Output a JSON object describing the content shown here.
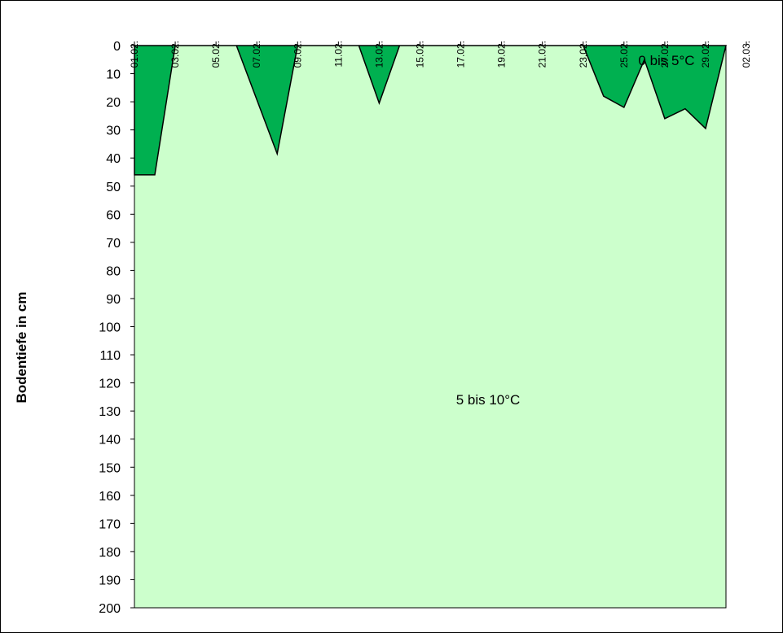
{
  "chart_data": {
    "type": "area",
    "title": "",
    "xlabel": "",
    "ylabel": "Bodentiefe in cm",
    "x_tick_labels": [
      "01.02.",
      "03.02.",
      "05.02.",
      "07.02.",
      "09.02.",
      "11.02.",
      "13.02.",
      "15.02.",
      "17.02.",
      "19.02.",
      "21.02.",
      "23.02.",
      "25.02.",
      "27.02.",
      "29.02.",
      "02.03."
    ],
    "x_range": [
      "01.02.",
      "02.03."
    ],
    "y_tick_labels": [
      "0",
      "10",
      "20",
      "30",
      "40",
      "50",
      "60",
      "70",
      "80",
      "90",
      "100",
      "110",
      "120",
      "130",
      "140",
      "150",
      "160",
      "170",
      "180",
      "190",
      "200"
    ],
    "ylim": [
      0,
      200
    ],
    "y_inverted": true,
    "grid": false,
    "colors": {
      "background_region": "#ccffcc",
      "cold_region": "#00b050",
      "outline": "#000000"
    },
    "series": [
      {
        "name": "0 bis 5°C",
        "points": [
          {
            "x": "01.02.",
            "y": 46
          },
          {
            "x": "02.02.",
            "y": 46
          },
          {
            "x": "03.02.",
            "y": 0
          },
          {
            "x": "06.02.",
            "y": 0
          },
          {
            "x": "08.02.",
            "y": 38.5
          },
          {
            "x": "09.02.",
            "y": 0
          },
          {
            "x": "12.02.",
            "y": 0
          },
          {
            "x": "13.02.",
            "y": 20.5
          },
          {
            "x": "14.02.",
            "y": 0
          },
          {
            "x": "23.02.",
            "y": 0
          },
          {
            "x": "24.02.",
            "y": 18
          },
          {
            "x": "25.02.",
            "y": 22
          },
          {
            "x": "26.02.",
            "y": 5
          },
          {
            "x": "27.02.",
            "y": 26
          },
          {
            "x": "28.02.",
            "y": 22.5
          },
          {
            "x": "29.02.",
            "y": 29.5
          },
          {
            "x": "01.03.",
            "y": 0
          }
        ]
      },
      {
        "name": "5 bis 10°C",
        "fill_to": 200
      }
    ],
    "annotations": [
      "0 bis 5°C",
      "5 bis 10°C"
    ]
  }
}
